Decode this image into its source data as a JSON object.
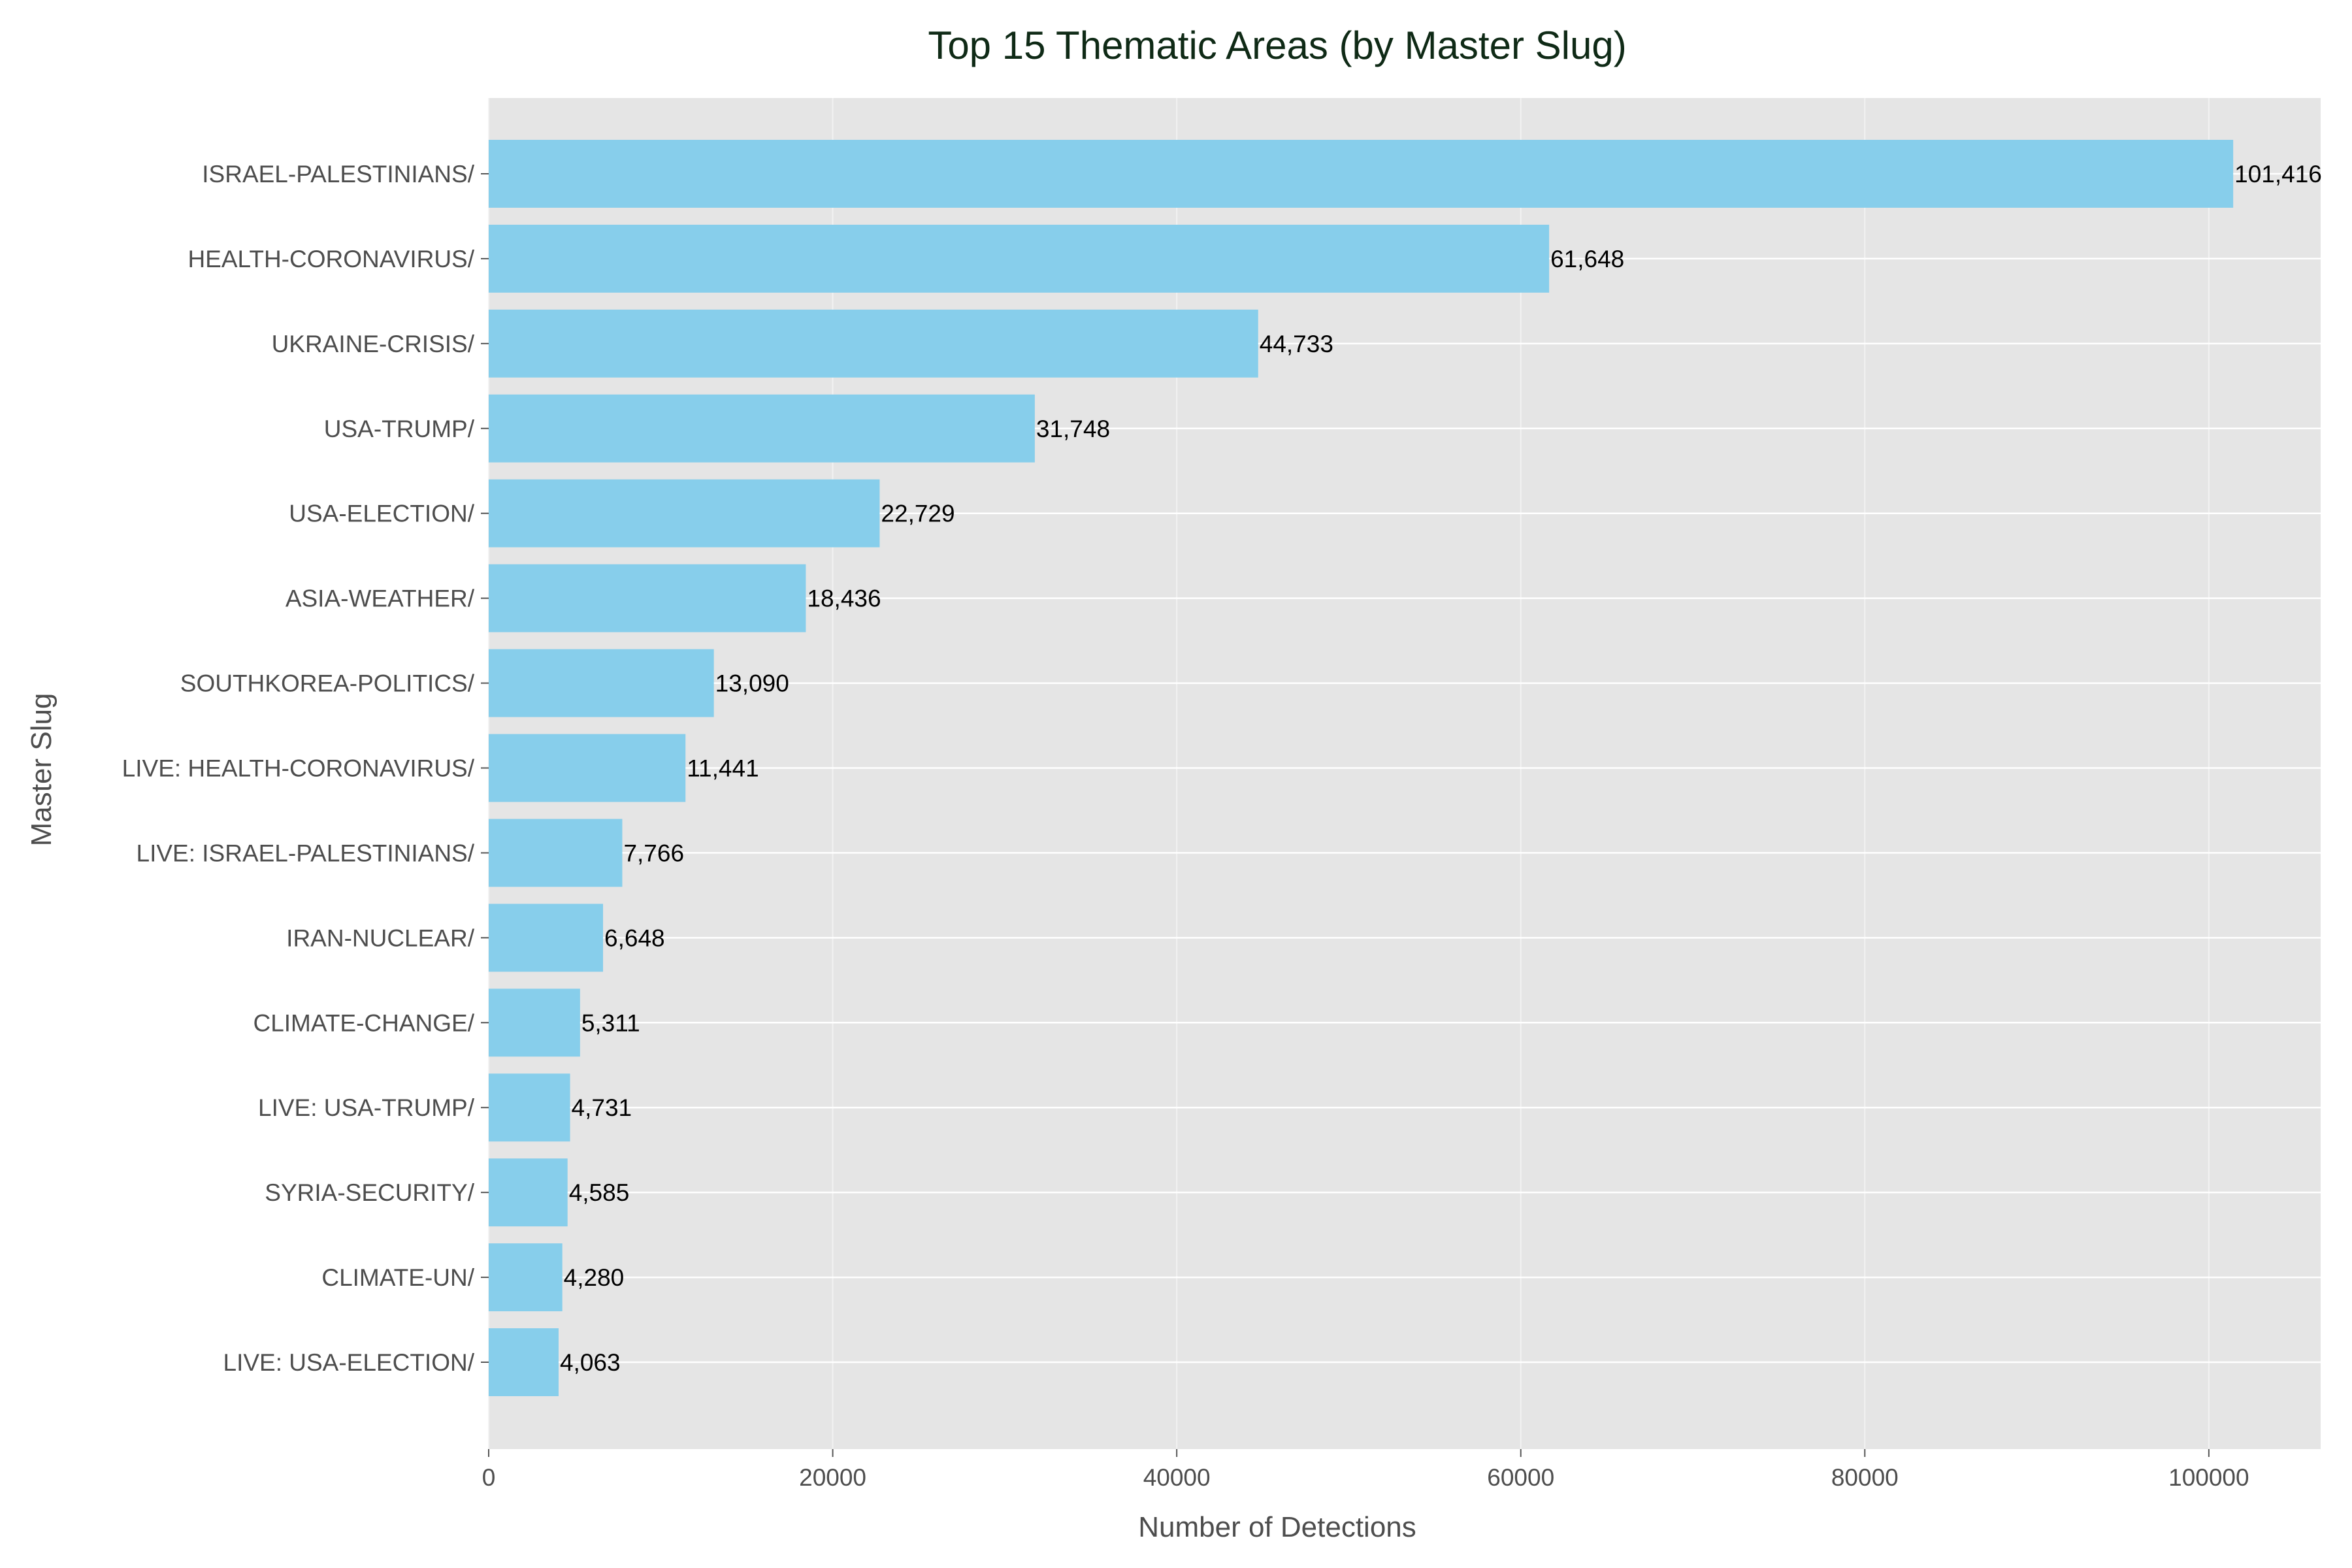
{
  "chart_data": {
    "type": "bar",
    "orientation": "horizontal",
    "title": "Top 15 Thematic Areas (by Master Slug)",
    "xlabel": "Number of Detections",
    "ylabel": "Master Slug",
    "xlim": [
      0,
      106500
    ],
    "xticks": [
      0,
      20000,
      40000,
      60000,
      80000,
      100000
    ],
    "xtick_labels": [
      "0",
      "20000",
      "40000",
      "60000",
      "80000",
      "100000"
    ],
    "grid": true,
    "bar_color": "#87ceeb",
    "background_color": "#e5e5e5",
    "categories": [
      "ISRAEL-PALESTINIANS/",
      "HEALTH-CORONAVIRUS/",
      "UKRAINE-CRISIS/",
      "USA-TRUMP/",
      "USA-ELECTION/",
      "ASIA-WEATHER/",
      "SOUTHKOREA-POLITICS/",
      "LIVE: HEALTH-CORONAVIRUS/",
      "LIVE: ISRAEL-PALESTINIANS/",
      "IRAN-NUCLEAR/",
      "CLIMATE-CHANGE/",
      "LIVE: USA-TRUMP/",
      "SYRIA-SECURITY/",
      "CLIMATE-UN/",
      "LIVE: USA-ELECTION/"
    ],
    "values": [
      101416,
      61648,
      44733,
      31748,
      22729,
      18436,
      13090,
      11441,
      7766,
      6648,
      5311,
      4731,
      4585,
      4280,
      4063
    ],
    "value_labels": [
      "101,416",
      "61,648",
      "44,733",
      "31,748",
      "22,729",
      "18,436",
      "13,090",
      "11,441",
      "7,766",
      "6,648",
      "5,311",
      "4,731",
      "4,585",
      "4,280",
      "4,063"
    ]
  }
}
